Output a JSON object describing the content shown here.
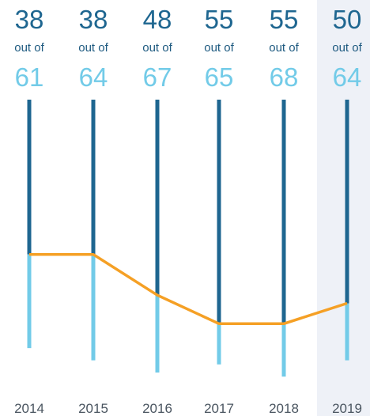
{
  "chart_data": {
    "type": "line",
    "x": [
      "2014",
      "2015",
      "2016",
      "2017",
      "2018",
      "2019"
    ],
    "series": [
      {
        "values": [
          38,
          38,
          48,
          55,
          55,
          50
        ]
      },
      {
        "values": [
          61,
          64,
          67,
          65,
          68,
          64
        ]
      }
    ],
    "connector_text": "out of",
    "highlight": "2019",
    "colors": {
      "count": "#1e6690",
      "total": "#72cbe8",
      "line": "#f5a025",
      "highlight_bg": "#eef1f7"
    }
  }
}
